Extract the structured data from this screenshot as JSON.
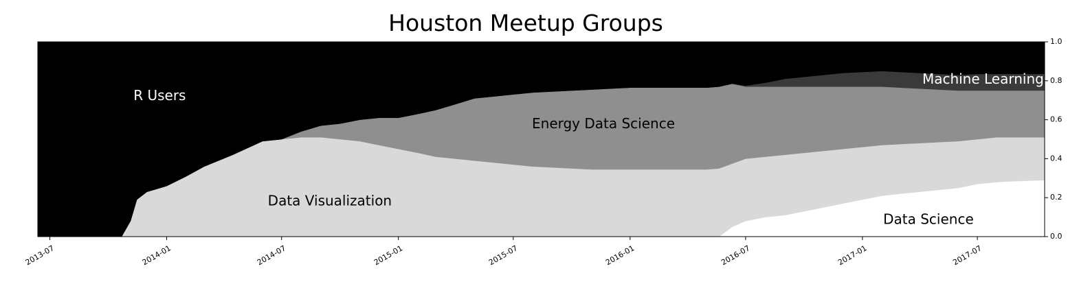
{
  "chart_data": {
    "type": "area",
    "stacked": true,
    "normalized": true,
    "title": "Houston Meetup Groups",
    "xlabel": "",
    "ylabel": "",
    "x_range": [
      "2013-06-12",
      "2017-10-15"
    ],
    "ylim": [
      0,
      1.0
    ],
    "y_axis_side": "right",
    "grid": false,
    "legend": "none",
    "x_ticks": [
      "2013-07",
      "2014-01",
      "2014-07",
      "2015-01",
      "2015-07",
      "2016-01",
      "2016-07",
      "2017-01",
      "2017-07"
    ],
    "y_ticks": [
      "0.0",
      "0.2",
      "0.4",
      "0.6",
      "0.8",
      "1.0"
    ],
    "x": [
      "2013-06-12",
      "2013-10-22",
      "2013-11-05",
      "2013-11-15",
      "2013-12-01",
      "2014-01-01",
      "2014-02-01",
      "2014-03-01",
      "2014-04-15",
      "2014-06-01",
      "2014-07-01",
      "2014-08-01",
      "2014-09-01",
      "2014-10-01",
      "2014-11-01",
      "2014-12-01",
      "2015-01-01",
      "2015-02-01",
      "2015-03-01",
      "2015-04-01",
      "2015-05-01",
      "2015-06-01",
      "2015-07-01",
      "2015-08-01",
      "2015-09-01",
      "2015-10-01",
      "2015-11-01",
      "2015-12-01",
      "2016-01-01",
      "2016-02-01",
      "2016-03-01",
      "2016-04-01",
      "2016-05-01",
      "2016-05-20",
      "2016-06-10",
      "2016-07-01",
      "2016-08-01",
      "2016-09-01",
      "2016-10-01",
      "2016-11-01",
      "2016-12-01",
      "2017-01-01",
      "2017-02-01",
      "2017-03-01",
      "2017-04-01",
      "2017-05-01",
      "2017-06-01",
      "2017-07-01",
      "2017-08-01",
      "2017-09-01",
      "2017-10-15"
    ],
    "series": [
      {
        "name": "Data Science",
        "color": "#ffffff",
        "values": [
          0,
          0,
          0,
          0,
          0,
          0,
          0,
          0,
          0,
          0,
          0,
          0,
          0,
          0,
          0,
          0,
          0,
          0,
          0,
          0,
          0,
          0,
          0,
          0,
          0,
          0,
          0,
          0,
          0,
          0,
          0,
          0,
          0,
          0,
          0.05,
          0.08,
          0.1,
          0.11,
          0.13,
          0.15,
          0.17,
          0.19,
          0.21,
          0.22,
          0.23,
          0.24,
          0.25,
          0.27,
          0.28,
          0.285,
          0.29
        ]
      },
      {
        "name": "Data Visualization",
        "color": "#d9d9d9",
        "values": [
          0,
          0,
          0.08,
          0.19,
          0.23,
          0.26,
          0.31,
          0.36,
          0.42,
          0.49,
          0.5,
          0.51,
          0.51,
          0.5,
          0.49,
          0.47,
          0.45,
          0.43,
          0.41,
          0.4,
          0.39,
          0.38,
          0.37,
          0.36,
          0.355,
          0.35,
          0.345,
          0.345,
          0.345,
          0.345,
          0.345,
          0.345,
          0.345,
          0.35,
          0.325,
          0.32,
          0.31,
          0.31,
          0.3,
          0.29,
          0.28,
          0.27,
          0.26,
          0.255,
          0.25,
          0.245,
          0.24,
          0.23,
          0.23,
          0.225,
          0.22
        ]
      },
      {
        "name": "Energy Data Science",
        "color": "#8f8f8f",
        "values": [
          0,
          0,
          0,
          0,
          0,
          0,
          0,
          0,
          0,
          0,
          0,
          0.03,
          0.06,
          0.08,
          0.11,
          0.14,
          0.16,
          0.2,
          0.24,
          0.28,
          0.32,
          0.34,
          0.36,
          0.38,
          0.39,
          0.4,
          0.41,
          0.415,
          0.42,
          0.42,
          0.42,
          0.42,
          0.42,
          0.42,
          0.41,
          0.37,
          0.36,
          0.35,
          0.34,
          0.33,
          0.32,
          0.31,
          0.3,
          0.29,
          0.28,
          0.27,
          0.26,
          0.25,
          0.24,
          0.24,
          0.24
        ]
      },
      {
        "name": "Machine Learning",
        "color": "#3a3a3a",
        "values": [
          0,
          0,
          0,
          0,
          0,
          0,
          0,
          0,
          0,
          0,
          0,
          0,
          0,
          0,
          0,
          0,
          0,
          0,
          0,
          0,
          0,
          0,
          0,
          0,
          0,
          0,
          0,
          0,
          0,
          0,
          0,
          0,
          0,
          0,
          0,
          0.005,
          0.02,
          0.04,
          0.05,
          0.06,
          0.07,
          0.075,
          0.08,
          0.08,
          0.08,
          0.08,
          0.08,
          0.085,
          0.085,
          0.085,
          0.085
        ]
      },
      {
        "name": "R Users",
        "color": "#000000",
        "values": [
          1,
          1,
          0.92,
          0.81,
          0.77,
          0.74,
          0.69,
          0.64,
          0.58,
          0.51,
          0.5,
          0.46,
          0.43,
          0.42,
          0.4,
          0.39,
          0.39,
          0.37,
          0.35,
          0.32,
          0.29,
          0.28,
          0.27,
          0.26,
          0.255,
          0.25,
          0.245,
          0.24,
          0.235,
          0.235,
          0.235,
          0.235,
          0.235,
          0.23,
          0.215,
          0.225,
          0.21,
          0.19,
          0.18,
          0.17,
          0.16,
          0.155,
          0.15,
          0.155,
          0.16,
          0.165,
          0.17,
          0.165,
          0.165,
          0.165,
          0.165
        ]
      }
    ],
    "annotations": [
      {
        "text": "R Users",
        "x": "2013-12-21",
        "y": 0.72,
        "color": "#ffffff"
      },
      {
        "text": "Energy Data Science",
        "x": "2015-11-20",
        "y": 0.575,
        "color": "#000000"
      },
      {
        "text": "Machine Learning",
        "x": "2017-07-10",
        "y": 0.805,
        "color": "#ffffff"
      },
      {
        "text": "Data Visualization",
        "x": "2014-09-15",
        "y": 0.18,
        "color": "#000000"
      },
      {
        "text": "Data Science",
        "x": "2017-04-15",
        "y": 0.085,
        "color": "#000000"
      }
    ]
  }
}
